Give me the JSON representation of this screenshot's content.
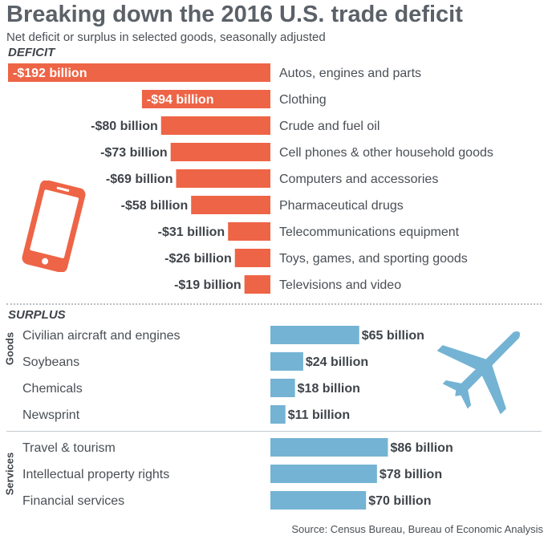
{
  "title": "Breaking down the 2016 U.S. trade deficit",
  "subtitle": "Net deficit or surplus in selected goods, seasonally adjusted",
  "source": "Source: Census Bureau, Bureau of Economic Analysis",
  "colors": {
    "deficit": "#ee6446",
    "surplus": "#74b3d3",
    "text": "#4a4f55"
  },
  "icons": {
    "deficit": "smartphone-icon",
    "surplus": "airplane-icon"
  },
  "chart_data": {
    "type": "bar",
    "unit": "billion",
    "sections": [
      {
        "label": "DEFICIT",
        "groups": [
          {
            "label": "",
            "categories": [
              "Autos, engines and parts",
              "Clothing",
              "Crude and fuel oil",
              "Cell phones & other household goods",
              "Computers and accessories",
              "Pharmaceutical drugs",
              "Telecommunications equipment",
              "Toys, games, and sporting goods",
              "Televisions and video"
            ],
            "values": [
              -192,
              -94,
              -80,
              -73,
              -69,
              -58,
              -31,
              -26,
              -19
            ],
            "value_labels": [
              "-$192 billion",
              "-$94 billion",
              "-$80 billion",
              "-$73 billion",
              "-$69 billion",
              "-$58 billion",
              "-$31 billion",
              "-$26 billion",
              "-$19 billion"
            ]
          }
        ]
      },
      {
        "label": "SURPLUS",
        "groups": [
          {
            "label": "Goods",
            "categories": [
              "Civilian aircraft and engines",
              "Soybeans",
              "Chemicals",
              "Newsprint"
            ],
            "values": [
              65,
              24,
              18,
              11
            ],
            "value_labels": [
              "$65 billion",
              "$24 billion",
              "$18 billion",
              "$11 billion"
            ]
          },
          {
            "label": "Services",
            "categories": [
              "Travel & tourism",
              "Intellectual property rights",
              "Financial services"
            ],
            "values": [
              86,
              78,
              70
            ],
            "value_labels": [
              "$86 billion",
              "$78 billion",
              "$70 billion"
            ]
          }
        ]
      }
    ]
  }
}
